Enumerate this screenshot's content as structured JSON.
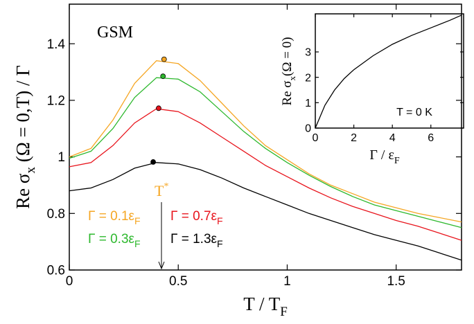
{
  "chart_data": [
    {
      "type": "line",
      "title": "GSM",
      "x_label": [
        "T / T",
        "F"
      ],
      "y_label": [
        "Re σ",
        "x",
        " (Ω = 0,T) / Γ"
      ],
      "annotation": [
        "T",
        "*"
      ],
      "xlim": [
        0,
        1.8
      ],
      "xticks": [
        0,
        0.5,
        1,
        1.5
      ],
      "ylim": [
        0.6,
        1.54
      ],
      "yticks": [
        0.6,
        0.8,
        1,
        1.2,
        1.4
      ],
      "x": [
        0,
        0.1,
        0.2,
        0.3,
        0.4,
        0.5,
        0.6,
        0.7,
        0.8,
        0.9,
        1,
        1.1,
        1.2,
        1.3,
        1.4,
        1.5,
        1.6,
        1.7,
        1.8
      ],
      "series": [
        {
          "name": [
            "Γ = 0.1ε",
            "F"
          ],
          "color": "#f5a623",
          "peak_x": 0.435,
          "peak_y": 1.345,
          "values": [
            1.0,
            1.03,
            1.13,
            1.26,
            1.34,
            1.33,
            1.27,
            1.19,
            1.11,
            1.04,
            0.99,
            0.94,
            0.9,
            0.87,
            0.84,
            0.82,
            0.8,
            0.785,
            0.77
          ]
        },
        {
          "name": [
            "Γ = 0.3ε",
            "F"
          ],
          "color": "#2db82d",
          "peak_x": 0.43,
          "peak_y": 1.285,
          "values": [
            0.995,
            1.02,
            1.1,
            1.21,
            1.28,
            1.275,
            1.23,
            1.16,
            1.09,
            1.03,
            0.98,
            0.935,
            0.895,
            0.86,
            0.83,
            0.81,
            0.79,
            0.77,
            0.75
          ]
        },
        {
          "name": [
            "Γ = 0.7ε",
            "F"
          ],
          "color": "#e8141c",
          "peak_x": 0.41,
          "peak_y": 1.172,
          "values": [
            0.965,
            0.98,
            1.04,
            1.12,
            1.17,
            1.16,
            1.12,
            1.07,
            1.02,
            0.97,
            0.93,
            0.89,
            0.855,
            0.825,
            0.8,
            0.775,
            0.755,
            0.73,
            0.705
          ]
        },
        {
          "name": [
            "Γ = 1.3ε",
            "F"
          ],
          "color": "#000000",
          "peak_x": 0.385,
          "peak_y": 0.982,
          "values": [
            0.88,
            0.89,
            0.92,
            0.96,
            0.98,
            0.975,
            0.955,
            0.925,
            0.89,
            0.86,
            0.83,
            0.8,
            0.775,
            0.75,
            0.725,
            0.705,
            0.685,
            0.66,
            0.635
          ]
        }
      ]
    },
    {
      "type": "line",
      "annotation": "T = 0 K",
      "x_label": [
        "Γ / ε",
        "F"
      ],
      "y_label": [
        "Re σ",
        "x",
        "(Ω = 0)"
      ],
      "xlim": [
        0,
        7.7
      ],
      "xticks": [
        0,
        2,
        4,
        6
      ],
      "ylim": [
        0,
        4.5
      ],
      "yticks": [
        0,
        1,
        2,
        3
      ],
      "x": [
        0,
        0.5,
        1,
        1.5,
        2,
        3,
        4,
        5,
        6,
        7,
        7.6
      ],
      "series": [
        {
          "color": "#000000",
          "values": [
            0,
            0.9,
            1.5,
            1.95,
            2.3,
            2.85,
            3.3,
            3.65,
            3.95,
            4.25,
            4.45
          ]
        }
      ]
    }
  ]
}
